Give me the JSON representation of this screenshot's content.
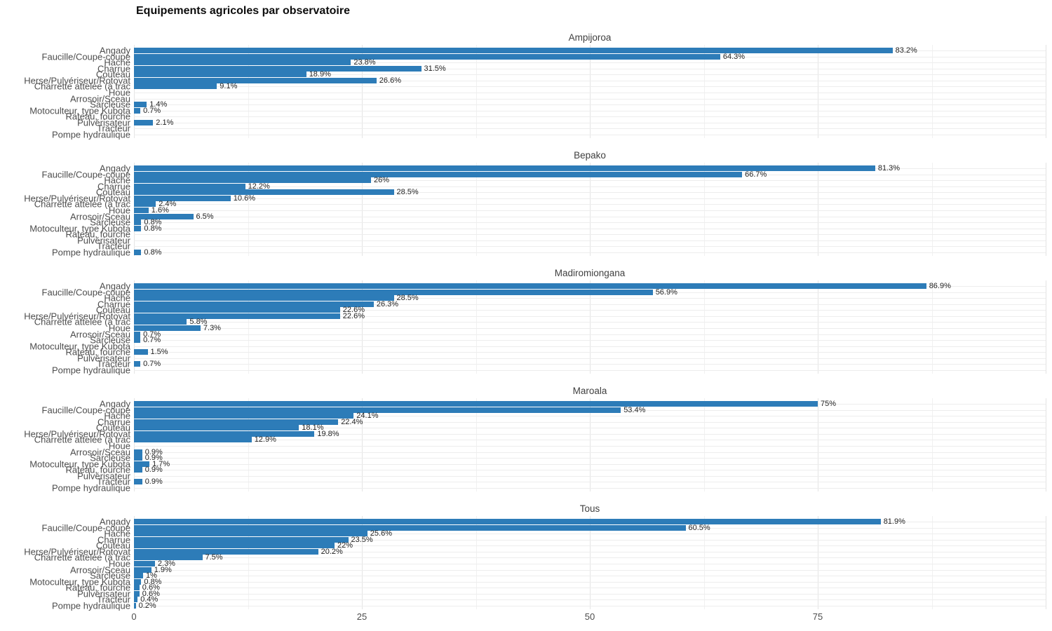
{
  "title": "Equipements agricoles par observatoire",
  "chart_data": {
    "type": "bar",
    "orientation": "horizontal",
    "title": "Equipements agricoles par observatoire",
    "xlabel": "",
    "ylabel": "",
    "xlim": [
      0,
      100
    ],
    "x_ticks": [
      "0",
      "25",
      "50",
      "75"
    ],
    "grid": true,
    "legend": "none",
    "bar_color": "#2d7cb8",
    "categories": [
      "Angady",
      "Faucille/Coupe-coupe",
      "Hache",
      "Charrue",
      "Couteau",
      "Herse/Pulvériseur/Rotovat",
      "Charrette attelée (à trac",
      "Houe",
      "Arrosoir/Sceau",
      "Sarcleuse",
      "Motoculteur, type Kubota",
      "Rateau, fourche",
      "Pulvérisateur",
      "Tracteur",
      "Pompe hydraulique"
    ],
    "panels": [
      {
        "name": "Ampijoroa",
        "values": [
          83.2,
          64.3,
          23.8,
          31.5,
          18.9,
          26.6,
          9.1,
          0,
          0,
          1.4,
          0.7,
          0,
          2.1,
          0,
          0
        ],
        "labels": [
          "83.2%",
          "64.3%",
          "23.8%",
          "31.5%",
          "18.9%",
          "26.6%",
          "9.1%",
          null,
          null,
          "1.4%",
          "0.7%",
          null,
          "2.1%",
          null,
          null
        ]
      },
      {
        "name": "Bepako",
        "values": [
          81.3,
          66.7,
          26,
          12.2,
          28.5,
          10.6,
          2.4,
          1.6,
          6.5,
          0.8,
          0.8,
          0,
          0,
          0,
          0.8
        ],
        "labels": [
          "81.3%",
          "66.7%",
          "26%",
          "12.2%",
          "28.5%",
          "10.6%",
          "2.4%",
          "1.6%",
          "6.5%",
          "0.8%",
          "0.8%",
          null,
          null,
          null,
          "0.8%"
        ]
      },
      {
        "name": "Madiromiongana",
        "values": [
          86.9,
          56.9,
          28.5,
          26.3,
          22.6,
          22.6,
          5.8,
          7.3,
          0.7,
          0.7,
          0,
          1.5,
          0,
          0.7,
          0
        ],
        "labels": [
          "86.9%",
          "56.9%",
          "28.5%",
          "26.3%",
          "22.6%",
          "22.6%",
          "5.8%",
          "7.3%",
          "0.7%",
          "0.7%",
          null,
          "1.5%",
          null,
          "0.7%",
          null
        ]
      },
      {
        "name": "Maroala",
        "values": [
          75,
          53.4,
          24.1,
          22.4,
          18.1,
          19.8,
          12.9,
          0,
          0.9,
          0.9,
          1.7,
          0.9,
          0,
          0.9,
          0
        ],
        "labels": [
          "75%",
          "53.4%",
          "24.1%",
          "22.4%",
          "18.1%",
          "19.8%",
          "12.9%",
          null,
          "0.9%",
          "0.9%",
          "1.7%",
          "0.9%",
          null,
          "0.9%",
          null
        ]
      },
      {
        "name": "Tous",
        "values": [
          81.9,
          60.5,
          25.6,
          23.5,
          22,
          20.2,
          7.5,
          2.3,
          1.9,
          1,
          0.8,
          0.6,
          0.6,
          0.4,
          0.2
        ],
        "labels": [
          "81.9%",
          "60.5%",
          "25.6%",
          "23.5%",
          "22%",
          "20.2%",
          "7.5%",
          "2.3%",
          "1.9%",
          "1%",
          "0.8%",
          "0.6%",
          "0.6%",
          "0.4%",
          "0.2%"
        ]
      }
    ]
  }
}
